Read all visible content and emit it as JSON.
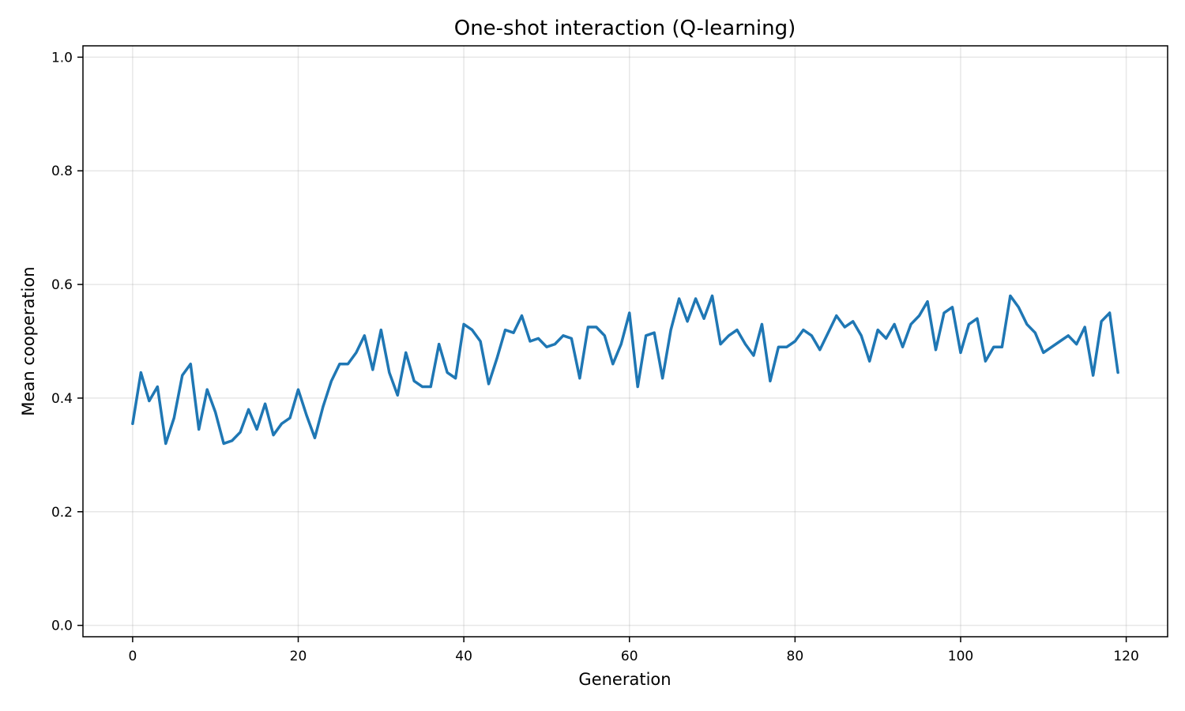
{
  "chart_data": {
    "type": "line",
    "title": "One-shot interaction (Q-learning)",
    "xlabel": "Generation",
    "ylabel": "Mean cooperation",
    "xlim": [
      -6,
      125
    ],
    "ylim": [
      -0.02,
      1.02
    ],
    "xticks": [
      0,
      20,
      40,
      60,
      80,
      100,
      120
    ],
    "yticks": [
      0.0,
      0.2,
      0.4,
      0.6,
      0.8,
      1.0
    ],
    "xtick_labels": [
      "0",
      "20",
      "40",
      "60",
      "80",
      "100",
      "120"
    ],
    "ytick_labels": [
      "0.0",
      "0.2",
      "0.4",
      "0.6",
      "0.8",
      "1.0"
    ],
    "grid": true,
    "line_color": "#1f77b4",
    "series": [
      {
        "values": [
          0.355,
          0.445,
          0.395,
          0.42,
          0.32,
          0.365,
          0.44,
          0.46,
          0.345,
          0.415,
          0.375,
          0.32,
          0.325,
          0.34,
          0.38,
          0.345,
          0.39,
          0.335,
          0.355,
          0.365,
          0.415,
          0.37,
          0.33,
          0.385,
          0.43,
          0.46,
          0.46,
          0.48,
          0.51,
          0.45,
          0.52,
          0.445,
          0.405,
          0.48,
          0.43,
          0.42,
          0.42,
          0.495,
          0.445,
          0.435,
          0.53,
          0.52,
          0.5,
          0.425,
          0.47,
          0.52,
          0.515,
          0.545,
          0.5,
          0.505,
          0.49,
          0.495,
          0.51,
          0.505,
          0.435,
          0.525,
          0.525,
          0.51,
          0.46,
          0.495,
          0.55,
          0.42,
          0.51,
          0.515,
          0.435,
          0.52,
          0.575,
          0.535,
          0.575,
          0.54,
          0.58,
          0.495,
          0.51,
          0.52,
          0.495,
          0.475,
          0.53,
          0.43,
          0.49,
          0.49,
          0.5,
          0.52,
          0.51,
          0.485,
          0.515,
          0.545,
          0.525,
          0.535,
          0.51,
          0.465,
          0.52,
          0.505,
          0.53,
          0.49,
          0.53,
          0.545,
          0.57,
          0.485,
          0.55,
          0.56,
          0.48,
          0.53,
          0.54,
          0.465,
          0.49,
          0.49,
          0.58,
          0.56,
          0.53,
          0.515,
          0.48,
          0.49,
          0.5,
          0.51,
          0.495,
          0.525,
          0.44,
          0.535,
          0.55,
          0.445
        ]
      }
    ]
  }
}
